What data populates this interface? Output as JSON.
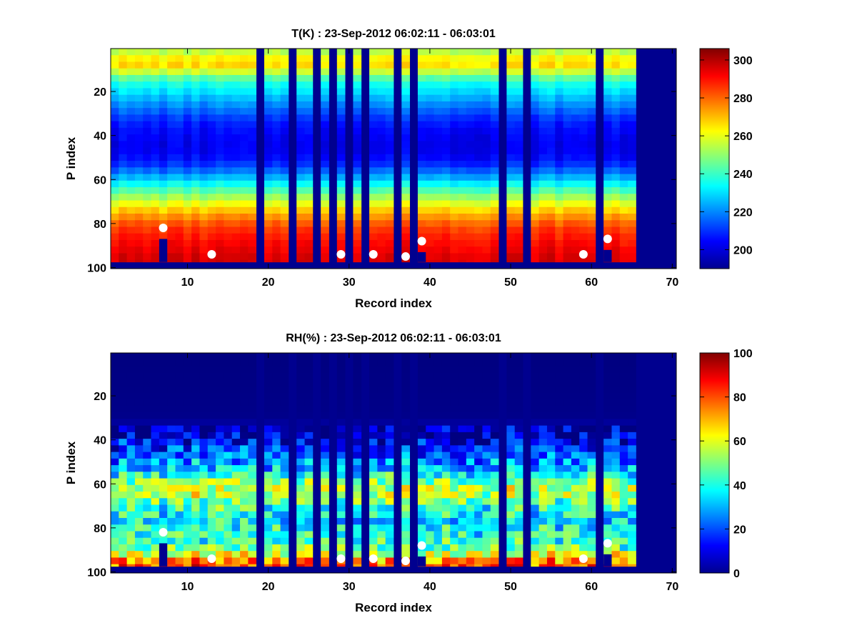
{
  "chart_data": [
    {
      "type": "heatmap",
      "title": "T(K) : 23-Sep-2012 06:02:11 - 06:03:01",
      "xlabel": "Record index",
      "ylabel": "P index",
      "xlim": [
        0.5,
        70.5
      ],
      "ylim": [
        0.5,
        100.5
      ],
      "y_reversed": true,
      "x_ticks": [
        10,
        20,
        30,
        40,
        50,
        60,
        70
      ],
      "y_ticks": [
        20,
        40,
        60,
        80,
        100
      ],
      "colormap": "jet",
      "clim": [
        190,
        306
      ],
      "colorbar_ticks": [
        200,
        220,
        240,
        260,
        280,
        300
      ],
      "fill_color": "#00008f",
      "records_with_data": 65,
      "missing_records": [
        19,
        23,
        26,
        28,
        30,
        32,
        36,
        38,
        49,
        52,
        61
      ],
      "profile_bottom_pindex": 97,
      "profile_by_pindex": [
        [
          1,
          252
        ],
        [
          4,
          258
        ],
        [
          7,
          268
        ],
        [
          10,
          264
        ],
        [
          13,
          248
        ],
        [
          17,
          236
        ],
        [
          22,
          228
        ],
        [
          28,
          218
        ],
        [
          34,
          208
        ],
        [
          40,
          204
        ],
        [
          46,
          202
        ],
        [
          52,
          206
        ],
        [
          58,
          220
        ],
        [
          64,
          238
        ],
        [
          70,
          256
        ],
        [
          76,
          272
        ],
        [
          82,
          284
        ],
        [
          88,
          290
        ],
        [
          94,
          294
        ],
        [
          97,
          296
        ]
      ],
      "markers": [
        {
          "record": 7,
          "pindex": 82
        },
        {
          "record": 13,
          "pindex": 94
        },
        {
          "record": 29,
          "pindex": 94
        },
        {
          "record": 33,
          "pindex": 94
        },
        {
          "record": 37,
          "pindex": 95
        },
        {
          "record": 39,
          "pindex": 88
        },
        {
          "record": 59,
          "pindex": 94
        },
        {
          "record": 62,
          "pindex": 87
        }
      ]
    },
    {
      "type": "heatmap",
      "title": "RH(%) : 23-Sep-2012 06:02:11 - 06:03:01",
      "xlabel": "Record index",
      "ylabel": "P index",
      "xlim": [
        0.5,
        70.5
      ],
      "ylim": [
        0.5,
        100.5
      ],
      "y_reversed": true,
      "x_ticks": [
        10,
        20,
        30,
        40,
        50,
        60,
        70
      ],
      "y_ticks": [
        20,
        40,
        60,
        80,
        100
      ],
      "colormap": "jet",
      "clim": [
        0,
        100
      ],
      "colorbar_ticks": [
        0,
        20,
        40,
        60,
        80,
        100
      ],
      "fill_color": "#00008f",
      "records_with_data": 65,
      "missing_records": [
        19,
        23,
        26,
        28,
        30,
        32,
        36,
        38,
        49,
        52,
        61
      ],
      "profile_bottom_pindex": 97,
      "profile_by_pindex": [
        [
          1,
          0
        ],
        [
          30,
          1
        ],
        [
          36,
          5
        ],
        [
          42,
          12
        ],
        [
          48,
          22
        ],
        [
          54,
          32
        ],
        [
          58,
          45
        ],
        [
          62,
          55
        ],
        [
          66,
          55
        ],
        [
          70,
          44
        ],
        [
          74,
          38
        ],
        [
          78,
          36
        ],
        [
          82,
          40
        ],
        [
          86,
          42
        ],
        [
          90,
          48
        ],
        [
          94,
          65
        ],
        [
          97,
          80
        ]
      ],
      "markers": [
        {
          "record": 7,
          "pindex": 82
        },
        {
          "record": 13,
          "pindex": 94
        },
        {
          "record": 29,
          "pindex": 94
        },
        {
          "record": 33,
          "pindex": 94
        },
        {
          "record": 37,
          "pindex": 95
        },
        {
          "record": 39,
          "pindex": 88
        },
        {
          "record": 59,
          "pindex": 94
        },
        {
          "record": 62,
          "pindex": 87
        }
      ]
    }
  ]
}
